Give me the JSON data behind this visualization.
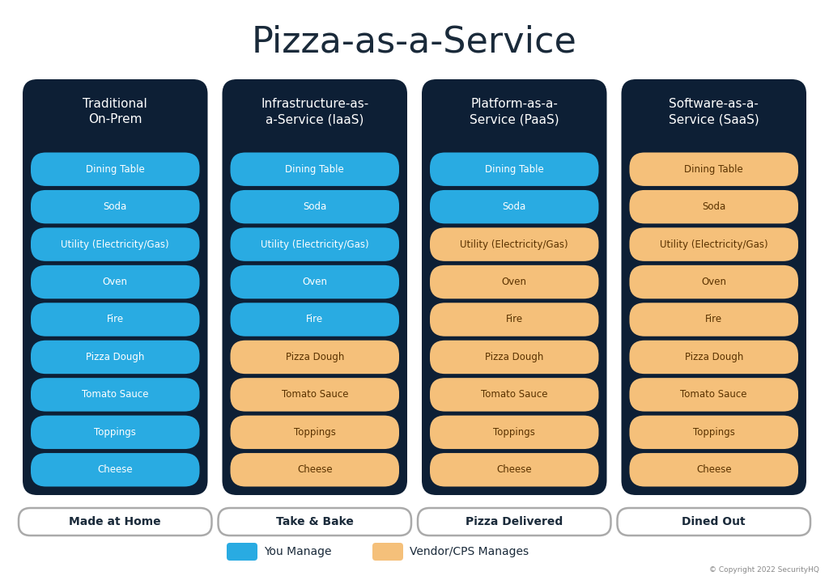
{
  "title": "Pizza-as-a-Service",
  "title_fontsize": 32,
  "background_color": "#ffffff",
  "card_bg_color": "#0d1f35",
  "blue_color": "#29abe2",
  "orange_color": "#f5c07a",
  "columns": [
    {
      "header": "Traditional\nOn-Prem",
      "footer": "Made at Home",
      "items": [
        {
          "label": "Dining Table",
          "color": "blue"
        },
        {
          "label": "Soda",
          "color": "blue"
        },
        {
          "label": "Utility (Electricity/Gas)",
          "color": "blue"
        },
        {
          "label": "Oven",
          "color": "blue"
        },
        {
          "label": "Fire",
          "color": "blue"
        },
        {
          "label": "Pizza Dough",
          "color": "blue"
        },
        {
          "label": "Tomato Sauce",
          "color": "blue"
        },
        {
          "label": "Toppings",
          "color": "blue"
        },
        {
          "label": "Cheese",
          "color": "blue"
        }
      ]
    },
    {
      "header": "Infrastructure-as-\na-Service (IaaS)",
      "footer": "Take & Bake",
      "items": [
        {
          "label": "Dining Table",
          "color": "blue"
        },
        {
          "label": "Soda",
          "color": "blue"
        },
        {
          "label": "Utility (Electricity/Gas)",
          "color": "blue"
        },
        {
          "label": "Oven",
          "color": "blue"
        },
        {
          "label": "Fire",
          "color": "blue"
        },
        {
          "label": "Pizza Dough",
          "color": "orange"
        },
        {
          "label": "Tomato Sauce",
          "color": "orange"
        },
        {
          "label": "Toppings",
          "color": "orange"
        },
        {
          "label": "Cheese",
          "color": "orange"
        }
      ]
    },
    {
      "header": "Platform-as-a-\nService (PaaS)",
      "footer": "Pizza Delivered",
      "items": [
        {
          "label": "Dining Table",
          "color": "blue"
        },
        {
          "label": "Soda",
          "color": "blue"
        },
        {
          "label": "Utility (Electricity/Gas)",
          "color": "orange"
        },
        {
          "label": "Oven",
          "color": "orange"
        },
        {
          "label": "Fire",
          "color": "orange"
        },
        {
          "label": "Pizza Dough",
          "color": "orange"
        },
        {
          "label": "Tomato Sauce",
          "color": "orange"
        },
        {
          "label": "Toppings",
          "color": "orange"
        },
        {
          "label": "Cheese",
          "color": "orange"
        }
      ]
    },
    {
      "header": "Software-as-a-\nService (SaaS)",
      "footer": "Dined Out",
      "items": [
        {
          "label": "Dining Table",
          "color": "orange"
        },
        {
          "label": "Soda",
          "color": "orange"
        },
        {
          "label": "Utility (Electricity/Gas)",
          "color": "orange"
        },
        {
          "label": "Oven",
          "color": "orange"
        },
        {
          "label": "Fire",
          "color": "orange"
        },
        {
          "label": "Pizza Dough",
          "color": "orange"
        },
        {
          "label": "Tomato Sauce",
          "color": "orange"
        },
        {
          "label": "Toppings",
          "color": "orange"
        },
        {
          "label": "Cheese",
          "color": "orange"
        }
      ]
    }
  ],
  "legend_blue_label": "You Manage",
  "legend_orange_label": "Vendor/CPS Manages",
  "copyright": "© Copyright 2022 SecurityHQ"
}
